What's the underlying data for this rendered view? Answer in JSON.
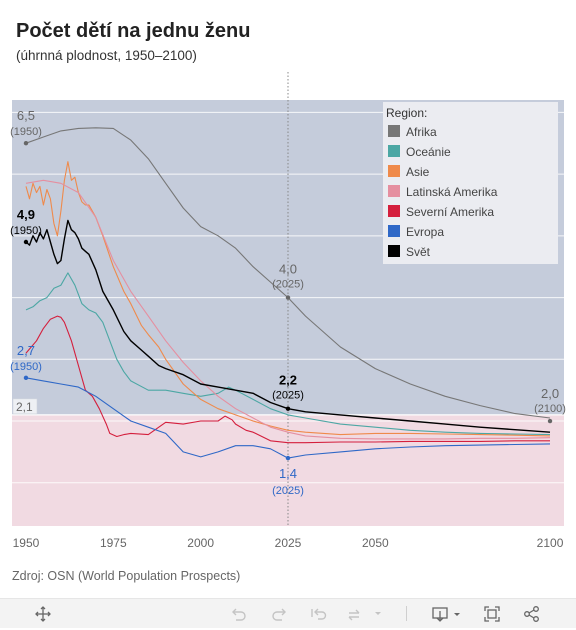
{
  "header": {
    "title": "Počet dětí na jednu ženu",
    "subtitle": "(úhrnná plodnost, 1950–2100)"
  },
  "source": "Zdroj: OSN (World Population Prospects)",
  "toolbar": {
    "icons": [
      "move-icon",
      "undo-icon",
      "redo-icon",
      "revert-icon",
      "refresh-icon",
      "download-icon",
      "fullscreen-icon",
      "share-icon"
    ]
  },
  "colors": {
    "upper_band": "#c5ccdb",
    "lower_band": "#f1dae2",
    "grid": "#ffffff",
    "reference_line": "#888888"
  },
  "chart_data": {
    "type": "line",
    "x_ticks": [
      1950,
      1975,
      2000,
      2025,
      2050,
      2100
    ],
    "xlim": [
      1946,
      2104
    ],
    "ylim": [
      0.3,
      7.2
    ],
    "grid": true,
    "replacement_level": {
      "value": 2.1,
      "label": "2,1"
    },
    "reference_year": 2025,
    "legend": {
      "title": "Region:",
      "position": "top-right",
      "items": [
        {
          "name": "Afrika",
          "color": "#777777"
        },
        {
          "name": "Oceánie",
          "color": "#4ca7a4"
        },
        {
          "name": "Asie",
          "color": "#ef8a4b"
        },
        {
          "name": "Latinská Amerika",
          "color": "#e58fa0"
        },
        {
          "name": "Severní Amerika",
          "color": "#d41f3d"
        },
        {
          "name": "Evropa",
          "color": "#2f68c7"
        },
        {
          "name": "Svět",
          "color": "#000000"
        }
      ]
    },
    "series": [
      {
        "name": "Afrika",
        "color": "#777777",
        "width": 1.1,
        "x": [
          1950,
          1955,
          1960,
          1965,
          1970,
          1975,
          1980,
          1985,
          1990,
          1995,
          2000,
          2005,
          2010,
          2015,
          2020,
          2025,
          2030,
          2040,
          2050,
          2060,
          2070,
          2080,
          2090,
          2100
        ],
        "y": [
          6.5,
          6.6,
          6.7,
          6.74,
          6.75,
          6.74,
          6.55,
          6.25,
          5.85,
          5.45,
          5.15,
          5.0,
          4.8,
          4.5,
          4.25,
          4.0,
          3.7,
          3.2,
          2.85,
          2.6,
          2.4,
          2.25,
          2.12,
          2.05
        ]
      },
      {
        "name": "Oceánie",
        "color": "#4ca7a4",
        "width": 1.1,
        "x": [
          1950,
          1952,
          1954,
          1956,
          1958,
          1960,
          1962,
          1964,
          1966,
          1968,
          1970,
          1972,
          1974,
          1976,
          1978,
          1980,
          1985,
          1990,
          1995,
          2000,
          2005,
          2008,
          2010,
          2015,
          2020,
          2025,
          2030,
          2040,
          2050,
          2060,
          2070,
          2080,
          2090,
          2100
        ],
        "y": [
          3.8,
          3.85,
          3.95,
          4.0,
          4.15,
          4.2,
          4.4,
          4.2,
          3.9,
          3.8,
          3.75,
          3.6,
          3.3,
          3.0,
          2.8,
          2.65,
          2.5,
          2.5,
          2.45,
          2.4,
          2.45,
          2.55,
          2.5,
          2.35,
          2.2,
          2.1,
          2.05,
          1.95,
          1.9,
          1.85,
          1.82,
          1.8,
          1.79,
          1.78
        ]
      },
      {
        "name": "Asie",
        "color": "#ef8a4b",
        "width": 1.1,
        "x": [
          1950,
          1951,
          1952,
          1953,
          1954,
          1955,
          1956,
          1957,
          1958,
          1959,
          1960,
          1961,
          1962,
          1963,
          1964,
          1965,
          1966,
          1967,
          1968,
          1970,
          1972,
          1975,
          1978,
          1980,
          1983,
          1985,
          1988,
          1990,
          1995,
          2000,
          2005,
          2010,
          2015,
          2020,
          2025,
          2030,
          2040,
          2050,
          2060,
          2070,
          2080,
          2090,
          2100
        ],
        "y": [
          5.8,
          5.6,
          5.85,
          5.7,
          5.8,
          5.5,
          5.75,
          5.6,
          5.2,
          5.0,
          5.4,
          5.9,
          6.2,
          5.9,
          5.95,
          5.7,
          5.55,
          5.5,
          5.5,
          5.3,
          5.0,
          4.5,
          4.1,
          3.9,
          3.55,
          3.4,
          3.2,
          3.0,
          2.6,
          2.35,
          2.2,
          2.1,
          2.0,
          1.92,
          1.85,
          1.82,
          1.78,
          1.8,
          1.8,
          1.79,
          1.78,
          1.77,
          1.76
        ]
      },
      {
        "name": "Latinská Amerika",
        "color": "#e58fa0",
        "width": 1.1,
        "x": [
          1950,
          1955,
          1960,
          1965,
          1970,
          1975,
          1980,
          1985,
          1990,
          1995,
          2000,
          2005,
          2010,
          2015,
          2020,
          2025,
          2030,
          2040,
          2050,
          2060,
          2070,
          2080,
          2090,
          2100
        ],
        "y": [
          5.85,
          5.9,
          5.85,
          5.7,
          5.3,
          4.6,
          4.1,
          3.7,
          3.3,
          2.95,
          2.65,
          2.4,
          2.2,
          2.05,
          1.9,
          1.82,
          1.76,
          1.72,
          1.71,
          1.71,
          1.71,
          1.72,
          1.72,
          1.73
        ]
      },
      {
        "name": "Severní Amerika",
        "color": "#d41f3d",
        "width": 1.1,
        "x": [
          1950,
          1953,
          1955,
          1957,
          1959,
          1960,
          1961,
          1963,
          1965,
          1967,
          1969,
          1971,
          1973,
          1974,
          1976,
          1978,
          1980,
          1985,
          1990,
          1995,
          2000,
          2005,
          2007,
          2009,
          2010,
          2013,
          2015,
          2020,
          2025,
          2030,
          2040,
          2050,
          2060,
          2070,
          2080,
          2090,
          2100
        ],
        "y": [
          3.1,
          3.3,
          3.5,
          3.65,
          3.7,
          3.68,
          3.6,
          3.3,
          2.9,
          2.5,
          2.4,
          2.2,
          1.95,
          1.8,
          1.75,
          1.78,
          1.8,
          1.78,
          1.98,
          1.95,
          2.0,
          2.0,
          2.08,
          2.02,
          1.95,
          1.85,
          1.82,
          1.68,
          1.65,
          1.65,
          1.66,
          1.66,
          1.67,
          1.67,
          1.67,
          1.68,
          1.68
        ]
      },
      {
        "name": "Evropa",
        "color": "#2f68c7",
        "width": 1.1,
        "x": [
          1950,
          1955,
          1960,
          1965,
          1970,
          1975,
          1980,
          1985,
          1990,
          1995,
          2000,
          2005,
          2010,
          2015,
          2020,
          2025,
          2030,
          2040,
          2050,
          2060,
          2070,
          2080,
          2090,
          2100
        ],
        "y": [
          2.7,
          2.65,
          2.6,
          2.55,
          2.4,
          2.2,
          2.0,
          1.9,
          1.8,
          1.5,
          1.42,
          1.5,
          1.6,
          1.6,
          1.55,
          1.4,
          1.45,
          1.5,
          1.55,
          1.58,
          1.6,
          1.61,
          1.62,
          1.63
        ]
      },
      {
        "name": "Svět",
        "color": "#000000",
        "width": 1.4,
        "x": [
          1950,
          1951,
          1952,
          1953,
          1954,
          1955,
          1956,
          1957,
          1958,
          1959,
          1960,
          1961,
          1962,
          1963,
          1964,
          1965,
          1966,
          1967,
          1968,
          1970,
          1972,
          1975,
          1978,
          1980,
          1983,
          1985,
          1988,
          1990,
          1995,
          2000,
          2005,
          2010,
          2015,
          2020,
          2025,
          2030,
          2040,
          2050,
          2060,
          2070,
          2080,
          2090,
          2100
        ],
        "y": [
          4.9,
          4.85,
          5.0,
          4.9,
          5.05,
          4.95,
          5.1,
          4.9,
          4.7,
          4.55,
          4.6,
          4.95,
          5.25,
          5.1,
          5.05,
          4.95,
          4.8,
          4.75,
          4.7,
          4.45,
          4.1,
          3.8,
          3.45,
          3.3,
          3.15,
          3.05,
          2.9,
          2.85,
          2.75,
          2.6,
          2.55,
          2.5,
          2.45,
          2.3,
          2.2,
          2.15,
          2.1,
          2.05,
          2.0,
          1.95,
          1.9,
          1.86,
          1.82
        ]
      }
    ],
    "annotations": [
      {
        "series": "Afrika",
        "x": 1950,
        "y": 6.5,
        "value_label": "6,5",
        "year_label": "(1950)",
        "color": "#666666",
        "anchor": "left"
      },
      {
        "series": "Svět",
        "x": 1950,
        "y": 4.9,
        "value_label": "4,9",
        "year_label": "(1950)",
        "color": "#000000",
        "anchor": "left"
      },
      {
        "series": "Evropa",
        "x": 1950,
        "y": 2.7,
        "value_label": "2,7",
        "year_label": "(1950)",
        "color": "#2f68c7",
        "anchor": "left"
      },
      {
        "series": "Afrika",
        "x": 2025,
        "y": 4.0,
        "value_label": "4,0",
        "year_label": "(2025)",
        "color": "#666666",
        "anchor": "center"
      },
      {
        "series": "Svět",
        "x": 2025,
        "y": 2.2,
        "value_label": "2,2",
        "year_label": "(2025)",
        "color": "#000000",
        "anchor": "center"
      },
      {
        "series": "Evropa",
        "x": 2025,
        "y": 1.4,
        "value_label": "1,4",
        "year_label": "(2025)",
        "color": "#2f68c7",
        "anchor": "below"
      },
      {
        "series": "Afrika",
        "x": 2100,
        "y": 2.0,
        "value_label": "2,0",
        "year_label": "(2100)",
        "color": "#666666",
        "anchor": "right"
      }
    ]
  }
}
